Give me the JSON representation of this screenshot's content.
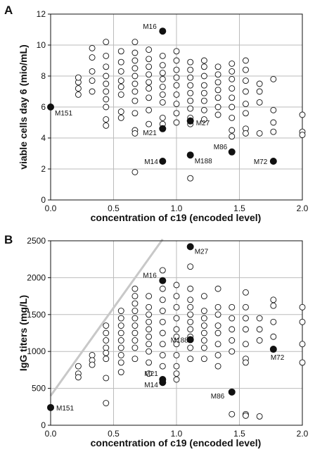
{
  "chart_data": [
    {
      "type": "scatter",
      "panel_label": "A",
      "title": "",
      "xlabel": "concentration of c19 (encoded level)",
      "ylabel": "viable cells day 6 (mio/mL)",
      "xlim": [
        0,
        2.0
      ],
      "ylim": [
        0,
        12
      ],
      "xticks": [
        "0.0",
        "0.5",
        "1.0",
        "1.5",
        "2.0"
      ],
      "yticks": [
        "0",
        "2",
        "4",
        "6",
        "8",
        "10",
        "12"
      ],
      "grid": true,
      "legend": "none",
      "colors": {
        "open": "#111111",
        "filled": "#111111",
        "grid": "#bbbbbb"
      },
      "open_points": [
        [
          0.22,
          7.6
        ],
        [
          0.22,
          7.2
        ],
        [
          0.22,
          6.8
        ],
        [
          0.22,
          7.9
        ],
        [
          0.33,
          8.3
        ],
        [
          0.33,
          9.2
        ],
        [
          0.33,
          9.8
        ],
        [
          0.33,
          7.7
        ],
        [
          0.33,
          7.0
        ],
        [
          0.44,
          8.6
        ],
        [
          0.44,
          8.0
        ],
        [
          0.44,
          7.5
        ],
        [
          0.44,
          7.0
        ],
        [
          0.44,
          6.5
        ],
        [
          0.44,
          6.0
        ],
        [
          0.44,
          5.2
        ],
        [
          0.44,
          4.8
        ],
        [
          0.44,
          9.3
        ],
        [
          0.44,
          10.2
        ],
        [
          0.56,
          8.9
        ],
        [
          0.56,
          8.3
        ],
        [
          0.56,
          7.7
        ],
        [
          0.56,
          7.3
        ],
        [
          0.56,
          6.8
        ],
        [
          0.56,
          5.7
        ],
        [
          0.56,
          5.3
        ],
        [
          0.56,
          9.6
        ],
        [
          0.67,
          10.2
        ],
        [
          0.67,
          9.5
        ],
        [
          0.67,
          9.0
        ],
        [
          0.67,
          8.5
        ],
        [
          0.67,
          8.0
        ],
        [
          0.67,
          7.5
        ],
        [
          0.67,
          7.0
        ],
        [
          0.67,
          6.4
        ],
        [
          0.67,
          5.6
        ],
        [
          0.67,
          4.5
        ],
        [
          0.67,
          4.3
        ],
        [
          0.67,
          1.8
        ],
        [
          0.78,
          9.7
        ],
        [
          0.78,
          9.1
        ],
        [
          0.78,
          8.6
        ],
        [
          0.78,
          8.1
        ],
        [
          0.78,
          7.6
        ],
        [
          0.78,
          7.2
        ],
        [
          0.78,
          6.6
        ],
        [
          0.78,
          5.8
        ],
        [
          0.78,
          4.9
        ],
        [
          0.89,
          9.3
        ],
        [
          0.89,
          8.7
        ],
        [
          0.89,
          8.2
        ],
        [
          0.89,
          7.8
        ],
        [
          0.89,
          7.3
        ],
        [
          0.89,
          6.8
        ],
        [
          0.89,
          6.3
        ],
        [
          0.89,
          5.3
        ],
        [
          0.89,
          4.9
        ],
        [
          1.0,
          9.6
        ],
        [
          1.0,
          9.0
        ],
        [
          1.0,
          8.4
        ],
        [
          1.0,
          7.9
        ],
        [
          1.0,
          7.4
        ],
        [
          1.0,
          6.8
        ],
        [
          1.0,
          6.2
        ],
        [
          1.0,
          5.6
        ],
        [
          1.0,
          5.0
        ],
        [
          1.11,
          8.9
        ],
        [
          1.11,
          8.4
        ],
        [
          1.11,
          7.9
        ],
        [
          1.11,
          7.4
        ],
        [
          1.11,
          6.9
        ],
        [
          1.11,
          6.4
        ],
        [
          1.11,
          5.9
        ],
        [
          1.11,
          5.3
        ],
        [
          1.11,
          4.9
        ],
        [
          1.11,
          1.4
        ],
        [
          1.22,
          9.0
        ],
        [
          1.22,
          8.6
        ],
        [
          1.22,
          8.0
        ],
        [
          1.22,
          7.4
        ],
        [
          1.22,
          6.9
        ],
        [
          1.22,
          6.4
        ],
        [
          1.22,
          5.8
        ],
        [
          1.22,
          5.2
        ],
        [
          1.33,
          8.6
        ],
        [
          1.33,
          8.1
        ],
        [
          1.33,
          7.6
        ],
        [
          1.33,
          7.1
        ],
        [
          1.33,
          6.6
        ],
        [
          1.33,
          6.0
        ],
        [
          1.33,
          5.5
        ],
        [
          1.44,
          8.8
        ],
        [
          1.44,
          8.3
        ],
        [
          1.44,
          7.8
        ],
        [
          1.44,
          7.2
        ],
        [
          1.44,
          6.6
        ],
        [
          1.44,
          6.0
        ],
        [
          1.44,
          5.3
        ],
        [
          1.44,
          4.5
        ],
        [
          1.44,
          4.1
        ],
        [
          1.55,
          9.0
        ],
        [
          1.55,
          8.4
        ],
        [
          1.55,
          7.7
        ],
        [
          1.55,
          7.0
        ],
        [
          1.55,
          6.2
        ],
        [
          1.55,
          5.6
        ],
        [
          1.55,
          4.6
        ],
        [
          1.55,
          4.3
        ],
        [
          1.66,
          7.5
        ],
        [
          1.66,
          7.0
        ],
        [
          1.66,
          6.3
        ],
        [
          1.66,
          4.3
        ],
        [
          1.77,
          7.8
        ],
        [
          1.77,
          5.8
        ],
        [
          1.77,
          5.0
        ],
        [
          1.77,
          4.4
        ],
        [
          2.0,
          5.5
        ],
        [
          2.0,
          4.4
        ],
        [
          2.0,
          4.2
        ]
      ],
      "labeled_points": [
        {
          "label": "M16",
          "x": 0.89,
          "y": 10.9
        },
        {
          "label": "M151",
          "x": 0.0,
          "y": 6.0
        },
        {
          "label": "M27",
          "x": 1.11,
          "y": 5.1
        },
        {
          "label": "M21",
          "x": 0.89,
          "y": 4.6
        },
        {
          "label": "M86",
          "x": 1.44,
          "y": 3.1
        },
        {
          "label": "M188",
          "x": 1.11,
          "y": 2.9
        },
        {
          "label": "M14",
          "x": 0.89,
          "y": 2.5
        },
        {
          "label": "M72",
          "x": 1.77,
          "y": 2.5
        }
      ]
    },
    {
      "type": "scatter",
      "panel_label": "B",
      "title": "",
      "xlabel": "concentration of c19 (encoded level)",
      "ylabel": "IgG titers (mg/L)",
      "xlim": [
        0,
        2.0
      ],
      "ylim": [
        0,
        2500
      ],
      "xticks": [
        "0.0",
        "0.5",
        "1.0",
        "1.5",
        "2.0"
      ],
      "yticks": [
        "0",
        "500",
        "1000",
        "1500",
        "2000",
        "2500"
      ],
      "grid": true,
      "legend": "none",
      "colors": {
        "open": "#111111",
        "filled": "#111111",
        "grid": "#bbbbbb",
        "trend": "#c8c8c8"
      },
      "trend_line": {
        "x": [
          0.0,
          0.89
        ],
        "y": [
          400,
          2520
        ]
      },
      "open_points": [
        [
          0.22,
          800
        ],
        [
          0.22,
          700
        ],
        [
          0.22,
          650
        ],
        [
          0.33,
          950
        ],
        [
          0.33,
          880
        ],
        [
          0.33,
          820
        ],
        [
          0.44,
          1350
        ],
        [
          0.44,
          1250
        ],
        [
          0.44,
          1150
        ],
        [
          0.44,
          1050
        ],
        [
          0.44,
          980
        ],
        [
          0.44,
          900
        ],
        [
          0.44,
          640
        ],
        [
          0.44,
          300
        ],
        [
          0.56,
          1550
        ],
        [
          0.56,
          1450
        ],
        [
          0.56,
          1350
        ],
        [
          0.56,
          1250
        ],
        [
          0.56,
          1150
        ],
        [
          0.56,
          1050
        ],
        [
          0.56,
          950
        ],
        [
          0.56,
          850
        ],
        [
          0.56,
          720
        ],
        [
          0.67,
          1850
        ],
        [
          0.67,
          1750
        ],
        [
          0.67,
          1650
        ],
        [
          0.67,
          1550
        ],
        [
          0.67,
          1450
        ],
        [
          0.67,
          1350
        ],
        [
          0.67,
          1250
        ],
        [
          0.67,
          1150
        ],
        [
          0.67,
          1050
        ],
        [
          0.67,
          900
        ],
        [
          0.78,
          1750
        ],
        [
          0.78,
          1600
        ],
        [
          0.78,
          1500
        ],
        [
          0.78,
          1400
        ],
        [
          0.78,
          1300
        ],
        [
          0.78,
          1200
        ],
        [
          0.78,
          1100
        ],
        [
          0.78,
          1000
        ],
        [
          0.78,
          850
        ],
        [
          0.78,
          700
        ],
        [
          0.89,
          2100
        ],
        [
          0.89,
          1850
        ],
        [
          0.89,
          1700
        ],
        [
          0.89,
          1550
        ],
        [
          0.89,
          1400
        ],
        [
          0.89,
          1250
        ],
        [
          0.89,
          1100
        ],
        [
          0.89,
          950
        ],
        [
          0.89,
          800
        ],
        [
          1.0,
          1900
        ],
        [
          1.0,
          1750
        ],
        [
          1.0,
          1600
        ],
        [
          1.0,
          1450
        ],
        [
          1.0,
          1300
        ],
        [
          1.0,
          1200
        ],
        [
          1.0,
          1100
        ],
        [
          1.0,
          950
        ],
        [
          1.0,
          800
        ],
        [
          1.0,
          700
        ],
        [
          1.0,
          620
        ],
        [
          1.11,
          2150
        ],
        [
          1.11,
          1850
        ],
        [
          1.11,
          1700
        ],
        [
          1.11,
          1600
        ],
        [
          1.11,
          1500
        ],
        [
          1.11,
          1400
        ],
        [
          1.11,
          1300
        ],
        [
          1.11,
          1200
        ],
        [
          1.11,
          1050
        ],
        [
          1.11,
          900
        ],
        [
          1.22,
          1750
        ],
        [
          1.22,
          1550
        ],
        [
          1.22,
          1450
        ],
        [
          1.22,
          1350
        ],
        [
          1.22,
          1250
        ],
        [
          1.22,
          1150
        ],
        [
          1.22,
          1050
        ],
        [
          1.22,
          900
        ],
        [
          1.33,
          1850
        ],
        [
          1.33,
          1600
        ],
        [
          1.33,
          1500
        ],
        [
          1.33,
          1350
        ],
        [
          1.33,
          1250
        ],
        [
          1.33,
          1100
        ],
        [
          1.33,
          950
        ],
        [
          1.33,
          800
        ],
        [
          1.44,
          1600
        ],
        [
          1.44,
          1450
        ],
        [
          1.44,
          1300
        ],
        [
          1.44,
          1150
        ],
        [
          1.44,
          1000
        ],
        [
          1.44,
          150
        ],
        [
          1.55,
          1800
        ],
        [
          1.55,
          1600
        ],
        [
          1.55,
          1450
        ],
        [
          1.55,
          1300
        ],
        [
          1.55,
          1100
        ],
        [
          1.55,
          900
        ],
        [
          1.55,
          850
        ],
        [
          1.55,
          150
        ],
        [
          1.55,
          130
        ],
        [
          1.66,
          1450
        ],
        [
          1.66,
          1300
        ],
        [
          1.66,
          1150
        ],
        [
          1.66,
          120
        ],
        [
          1.77,
          1700
        ],
        [
          1.77,
          1620
        ],
        [
          1.77,
          1400
        ],
        [
          1.77,
          1200
        ],
        [
          2.0,
          1600
        ],
        [
          2.0,
          1400
        ],
        [
          2.0,
          1100
        ],
        [
          2.0,
          850
        ]
      ],
      "labeled_points": [
        {
          "label": "M27",
          "x": 1.11,
          "y": 2420
        },
        {
          "label": "M16",
          "x": 0.89,
          "y": 1960
        },
        {
          "label": "M188",
          "x": 1.11,
          "y": 1160
        },
        {
          "label": "M72",
          "x": 1.77,
          "y": 1030
        },
        {
          "label": "M21",
          "x": 0.89,
          "y": 620
        },
        {
          "label": "M14",
          "x": 0.89,
          "y": 580
        },
        {
          "label": "M86",
          "x": 1.44,
          "y": 450
        },
        {
          "label": "M151",
          "x": 0.0,
          "y": 240
        }
      ]
    }
  ]
}
